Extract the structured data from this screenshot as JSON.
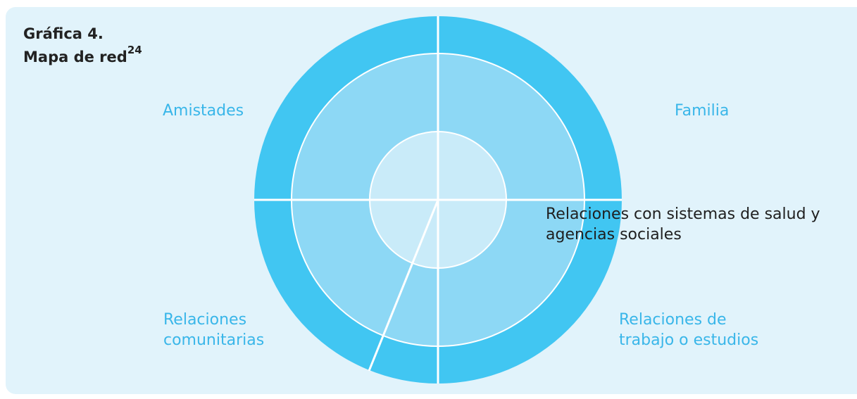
{
  "header": {
    "title_line1": "Gráfica 4.",
    "title_line2": "Mapa de red",
    "footnote": "24"
  },
  "diagram": {
    "quadrants": {
      "amistades": "Amistades",
      "familia": "Familia",
      "comunitarias_line1": "Relaciones",
      "comunitarias_line2": "comunitarias",
      "trabajo_line1": "Relaciones de",
      "trabajo_line2": "trabajo o estudios"
    },
    "sector": {
      "line1": "Relaciones con sistemas de salud y",
      "line2": "agencias sociales"
    },
    "colors": {
      "background": "#e1f3fb",
      "outer_ring": "#41c6f2",
      "middle_ring": "#8dd8f5",
      "inner_circle": "#c9ebf9",
      "divider": "#ffffff",
      "label": "#39b6e9"
    }
  }
}
